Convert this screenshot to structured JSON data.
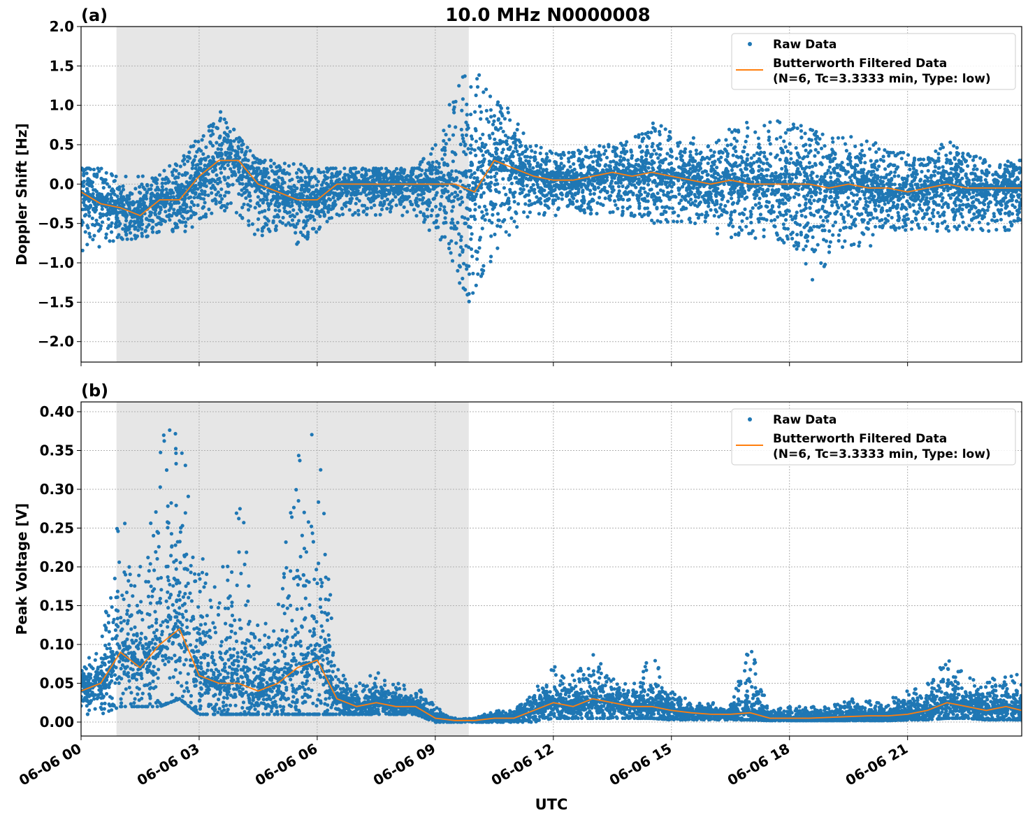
{
  "title": "10.0 MHz N0000008",
  "xlabel": "UTC",
  "colors": {
    "raw": "#1f77b4",
    "filtered": "#ff7f0e",
    "shade": "#e6e6e6",
    "grid": "#b0b0b0"
  },
  "x_ticks": {
    "hours": [
      0,
      3,
      6,
      9,
      12,
      15,
      18,
      21
    ],
    "labels": [
      "06-06 00",
      "06-06 03",
      "06-06 06",
      "06-06 09",
      "06-06 12",
      "06-06 15",
      "06-06 18",
      "06-06 21"
    ]
  },
  "xlim_hours_utc": [
    0,
    23.9
  ],
  "shaded_interval_hours_utc": [
    0.9,
    9.85
  ],
  "legend": {
    "raw": "Raw Data",
    "filtered_line1": "Butterworth Filtered Data",
    "filtered_line2": "(N=6, Tc=3.3333 min, Type: low)",
    "placement": "upper-right"
  },
  "chart_data": [
    {
      "type": "scatter+line",
      "panel_label": "(a)",
      "ylabel": "Doppler Shift [Hz]",
      "ylim": [
        -2.26,
        2.0
      ],
      "y_ticks": [
        2.0,
        1.5,
        1.0,
        0.5,
        0.0,
        -0.5,
        -1.0,
        -1.5,
        -2.0
      ],
      "y_tick_labels": [
        "2.0",
        "1.5",
        "1.0",
        "0.5",
        "0.0",
        "−0.5",
        "−1.0",
        "−1.5",
        "−2.0"
      ],
      "grid": true,
      "x_hours": [
        0,
        0.5,
        1,
        1.5,
        2,
        2.5,
        3,
        3.5,
        4,
        4.5,
        5,
        5.5,
        6,
        6.5,
        7,
        7.5,
        8,
        8.5,
        9,
        9.5,
        10,
        10.5,
        11,
        11.5,
        12,
        12.5,
        13,
        13.5,
        14,
        14.5,
        15,
        15.5,
        16,
        16.5,
        17,
        17.5,
        18,
        18.5,
        19,
        19.5,
        20,
        20.5,
        21,
        21.5,
        22,
        22.5,
        23,
        23.5,
        23.9
      ],
      "filtered": [
        -0.1,
        -0.25,
        -0.3,
        -0.4,
        -0.2,
        -0.2,
        0.1,
        0.3,
        0.3,
        0.0,
        -0.1,
        -0.2,
        -0.2,
        0.0,
        0.0,
        0.0,
        0.0,
        0.0,
        0.0,
        0.0,
        -0.1,
        0.3,
        0.2,
        0.1,
        0.05,
        0.05,
        0.1,
        0.15,
        0.1,
        0.15,
        0.1,
        0.05,
        0.0,
        0.05,
        0.0,
        0.0,
        0.0,
        0.0,
        -0.05,
        0.0,
        -0.05,
        -0.05,
        -0.1,
        -0.05,
        0.0,
        -0.05,
        -0.05,
        -0.05,
        -0.05
      ],
      "raw_min": [
        -0.9,
        -0.8,
        -0.7,
        -0.7,
        -0.6,
        -0.6,
        -0.6,
        -0.3,
        -0.5,
        -0.7,
        -0.6,
        -0.8,
        -0.6,
        -0.4,
        -0.4,
        -0.4,
        -0.4,
        -0.4,
        -0.7,
        -1.3,
        -1.6,
        -0.9,
        -0.6,
        -0.4,
        -0.4,
        -0.4,
        -0.4,
        -0.4,
        -0.4,
        -0.5,
        -0.5,
        -0.5,
        -0.6,
        -0.7,
        -0.7,
        -0.7,
        -0.8,
        -1.3,
        -1.0,
        -0.8,
        -0.8,
        -0.7,
        -0.6,
        -0.6,
        -0.6,
        -0.6,
        -0.6,
        -0.6,
        -0.6
      ],
      "raw_max": [
        0.2,
        0.2,
        0.1,
        0.1,
        0.3,
        0.3,
        0.6,
        1.0,
        0.6,
        0.3,
        0.3,
        0.3,
        0.2,
        0.2,
        0.2,
        0.2,
        0.2,
        0.2,
        0.5,
        1.2,
        1.6,
        1.1,
        0.9,
        0.5,
        0.4,
        0.4,
        0.5,
        0.5,
        0.6,
        0.8,
        0.8,
        0.6,
        0.6,
        0.7,
        0.8,
        0.8,
        0.8,
        0.7,
        0.6,
        0.6,
        0.6,
        0.4,
        0.4,
        0.4,
        0.6,
        0.4,
        0.3,
        0.3,
        0.3
      ]
    },
    {
      "type": "scatter+line",
      "panel_label": "(b)",
      "ylabel": "Peak Voltage [V]",
      "ylim": [
        -0.018,
        0.4126
      ],
      "y_ticks": [
        0.4,
        0.35,
        0.3,
        0.25,
        0.2,
        0.15,
        0.1,
        0.05,
        0.0
      ],
      "y_tick_labels": [
        "0.40",
        "0.35",
        "0.30",
        "0.25",
        "0.20",
        "0.15",
        "0.10",
        "0.05",
        "0.00"
      ],
      "grid": true,
      "x_hours": [
        0,
        0.5,
        1,
        1.5,
        2,
        2.5,
        3,
        3.5,
        4,
        4.5,
        5,
        5.5,
        6,
        6.5,
        7,
        7.5,
        8,
        8.5,
        9,
        9.5,
        10,
        10.5,
        11,
        11.5,
        12,
        12.5,
        13,
        13.5,
        14,
        14.5,
        15,
        15.5,
        16,
        16.5,
        17,
        17.5,
        18,
        18.5,
        19,
        19.5,
        20,
        20.5,
        21,
        21.5,
        22,
        22.5,
        23,
        23.5,
        23.9
      ],
      "filtered": [
        0.04,
        0.05,
        0.09,
        0.07,
        0.1,
        0.12,
        0.06,
        0.05,
        0.05,
        0.04,
        0.05,
        0.07,
        0.08,
        0.03,
        0.02,
        0.025,
        0.02,
        0.02,
        0.005,
        0.002,
        0.002,
        0.005,
        0.005,
        0.015,
        0.025,
        0.02,
        0.03,
        0.025,
        0.02,
        0.02,
        0.015,
        0.012,
        0.01,
        0.01,
        0.012,
        0.005,
        0.005,
        0.005,
        0.006,
        0.007,
        0.008,
        0.008,
        0.01,
        0.015,
        0.025,
        0.02,
        0.015,
        0.02,
        0.015
      ],
      "raw_min": [
        0.01,
        0.01,
        0.02,
        0.02,
        0.02,
        0.03,
        0.01,
        0.01,
        0.01,
        0.01,
        0.01,
        0.01,
        0.01,
        0.01,
        0.01,
        0.01,
        0.01,
        0.01,
        0.0,
        0.0,
        0.0,
        0.0,
        0.0,
        0.0,
        0.005,
        0.005,
        0.005,
        0.005,
        0.005,
        0.005,
        0.003,
        0.003,
        0.003,
        0.003,
        0.003,
        0.002,
        0.002,
        0.002,
        0.002,
        0.002,
        0.002,
        0.002,
        0.003,
        0.003,
        0.005,
        0.005,
        0.003,
        0.003,
        0.003
      ],
      "raw_max": [
        0.08,
        0.1,
        0.28,
        0.2,
        0.37,
        0.39,
        0.22,
        0.18,
        0.32,
        0.12,
        0.15,
        0.37,
        0.39,
        0.07,
        0.05,
        0.07,
        0.05,
        0.05,
        0.02,
        0.005,
        0.005,
        0.015,
        0.015,
        0.04,
        0.08,
        0.06,
        0.09,
        0.06,
        0.05,
        0.09,
        0.04,
        0.03,
        0.025,
        0.025,
        0.1,
        0.02,
        0.02,
        0.02,
        0.02,
        0.03,
        0.03,
        0.03,
        0.04,
        0.05,
        0.09,
        0.06,
        0.05,
        0.08,
        0.06
      ]
    }
  ]
}
